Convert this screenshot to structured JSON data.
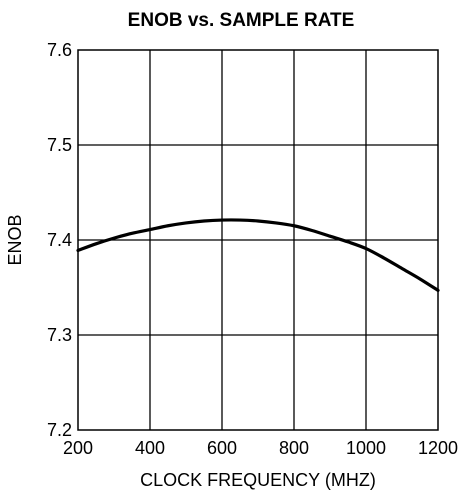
{
  "chart_data": {
    "type": "line",
    "title": "ENOB vs. SAMPLE RATE",
    "xlabel": "CLOCK FREQUENCY (MHZ)",
    "ylabel": "ENOB",
    "xlim": [
      200,
      1200
    ],
    "ylim": [
      7.2,
      7.6
    ],
    "x_ticks": [
      200,
      400,
      600,
      800,
      1000,
      1200
    ],
    "y_ticks": [
      7.2,
      7.3,
      7.4,
      7.5,
      7.6
    ],
    "x_tick_labels": [
      "200",
      "400",
      "600",
      "800",
      "1000",
      "1200"
    ],
    "y_tick_labels": [
      "7.2",
      "7.3",
      "7.4",
      "7.5",
      "7.6"
    ],
    "grid": true,
    "series": [
      {
        "color": "#000000",
        "x": [
          200,
          250,
          300,
          350,
          400,
          450,
          500,
          550,
          600,
          650,
          700,
          750,
          800,
          850,
          900,
          950,
          1000,
          1050,
          1100,
          1150,
          1200
        ],
        "y": [
          7.389,
          7.396,
          7.402,
          7.407,
          7.411,
          7.415,
          7.418,
          7.42,
          7.421,
          7.421,
          7.42,
          7.418,
          7.415,
          7.41,
          7.404,
          7.398,
          7.391,
          7.381,
          7.37,
          7.359,
          7.347
        ]
      }
    ]
  }
}
